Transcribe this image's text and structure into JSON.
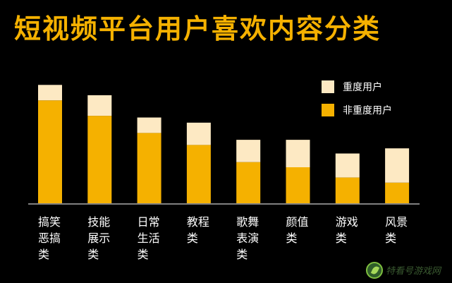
{
  "chart_data": {
    "type": "bar",
    "stacked": true,
    "title": "短视频平台用户喜欢内容分类",
    "categories": [
      "搞笑恶搞类",
      "技能展示类",
      "日常生活类",
      "教程类",
      "歌舞表演类",
      "颜值类",
      "游戏类",
      "风景类"
    ],
    "category_lines": [
      [
        "搞笑",
        "恶搞",
        "类"
      ],
      [
        "技能",
        "展示",
        "类"
      ],
      [
        "日常",
        "生活",
        "类"
      ],
      [
        "教程",
        "类"
      ],
      [
        "歌舞",
        "表演",
        "类"
      ],
      [
        "颜值",
        "类"
      ],
      [
        "游戏",
        "类"
      ],
      [
        "风景",
        "类"
      ]
    ],
    "series": [
      {
        "name": "非重度用户",
        "color": "#f5b100",
        "values": [
          60,
          51,
          41,
          34,
          24,
          21,
          15,
          12
        ]
      },
      {
        "name": "重度用户",
        "color": "#fde9c3",
        "values": [
          9,
          12,
          9,
          13,
          13,
          16,
          14,
          20
        ]
      }
    ],
    "stack_order": [
      "非重度用户",
      "重度用户"
    ],
    "ylim": [
      0,
      100
    ],
    "grid": false,
    "legend_position": "top-right"
  },
  "watermark": {
    "text": "特看号游戏网",
    "icon": "leaf-logo-icon"
  }
}
